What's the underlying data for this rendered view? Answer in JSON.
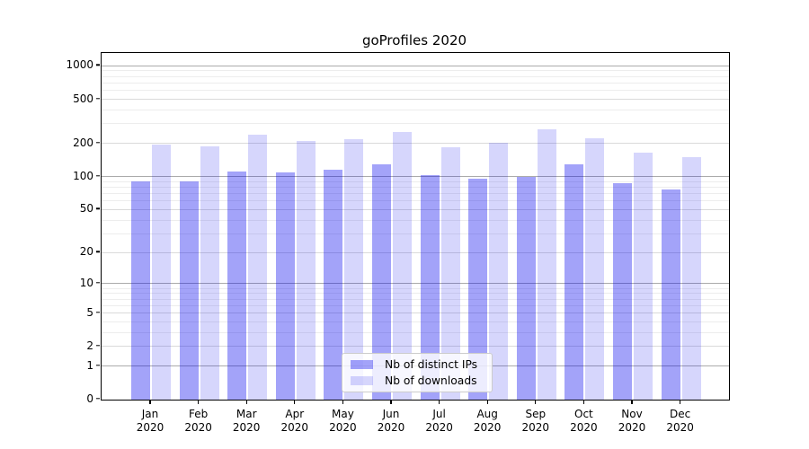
{
  "title": "goProfiles 2020",
  "colors": {
    "ips_bar": "rgba(0,0,238,0.36)",
    "downloads_bar": "rgba(0,0,238,0.16)",
    "grid_major": "#ababab",
    "grid_mid": "#dadada",
    "grid_faint": "#ededed",
    "spine": "#000000",
    "legend_bg": "rgba(255,255,255,0.8)",
    "legend_border": "#cccccc"
  },
  "chart_data": {
    "type": "bar",
    "title": "goProfiles 2020",
    "categories": [
      "Jan",
      "Feb",
      "Mar",
      "Apr",
      "May",
      "Jun",
      "Jul",
      "Aug",
      "Sep",
      "Oct",
      "Nov",
      "Dec"
    ],
    "x_tick_second_line": "2020",
    "series": [
      {
        "name": "Nb of distinct IPs",
        "values": [
          90,
          91,
          111,
          109,
          115,
          129,
          104,
          96,
          99,
          129,
          87,
          77
        ]
      },
      {
        "name": "Nb of downloads",
        "values": [
          194,
          188,
          238,
          210,
          217,
          253,
          184,
          203,
          270,
          224,
          166,
          150
        ]
      }
    ],
    "yscale": "log1p",
    "ylim": [
      0,
      1304
    ],
    "y_ticks": [
      {
        "value": 1000,
        "label": "1000"
      },
      {
        "value": 500,
        "label": "500"
      },
      {
        "value": 200,
        "label": "200"
      },
      {
        "value": 100,
        "label": "100"
      },
      {
        "value": 50,
        "label": "50"
      },
      {
        "value": 20,
        "label": "20"
      },
      {
        "value": 10,
        "label": "10"
      },
      {
        "value": 5,
        "label": "5"
      },
      {
        "value": 2,
        "label": "2"
      },
      {
        "value": 1,
        "label": "1"
      },
      {
        "value": 0,
        "label": "0"
      }
    ],
    "y_minor_gridlines": [
      3,
      4,
      6,
      7,
      8,
      9,
      30,
      40,
      60,
      70,
      80,
      90,
      300,
      400,
      600,
      700,
      800,
      900
    ],
    "grid": true,
    "legend_position": "lower center"
  }
}
